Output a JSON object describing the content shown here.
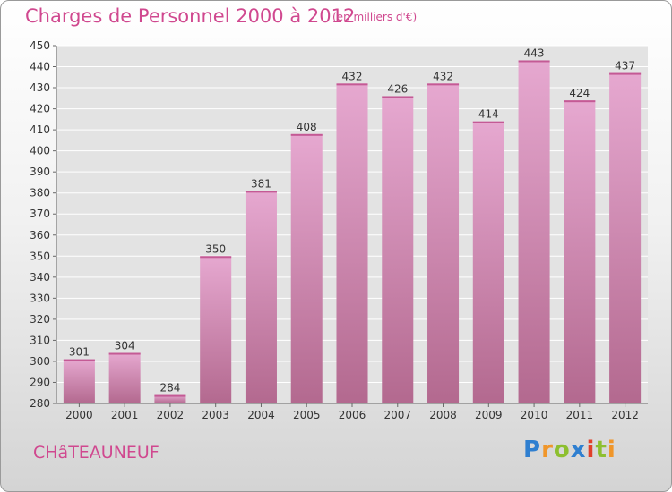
{
  "header": {
    "title": "Charges de Personnel 2000 à 2012",
    "subtitle": "(en milliers d'€)"
  },
  "footer": {
    "city": "CHâTEAUNEUF",
    "logo": "Proxiti"
  },
  "colors": {
    "accent": "#d0488f",
    "bar_top": "#e6a8d0",
    "bar_bottom": "#b3698f"
  },
  "chart_data": {
    "type": "bar",
    "categories": [
      "2000",
      "2001",
      "2002",
      "2003",
      "2004",
      "2005",
      "2006",
      "2007",
      "2008",
      "2009",
      "2010",
      "2011",
      "2012"
    ],
    "values": [
      301,
      304,
      284,
      350,
      381,
      408,
      432,
      426,
      432,
      414,
      443,
      424,
      437
    ],
    "ylim": [
      280,
      450
    ],
    "yticks": [
      280,
      290,
      300,
      310,
      320,
      330,
      340,
      350,
      360,
      370,
      380,
      390,
      400,
      410,
      420,
      430,
      440,
      450
    ],
    "grid": true,
    "title": "Charges de Personnel 2000 à 2012",
    "xlabel": "",
    "ylabel": ""
  }
}
